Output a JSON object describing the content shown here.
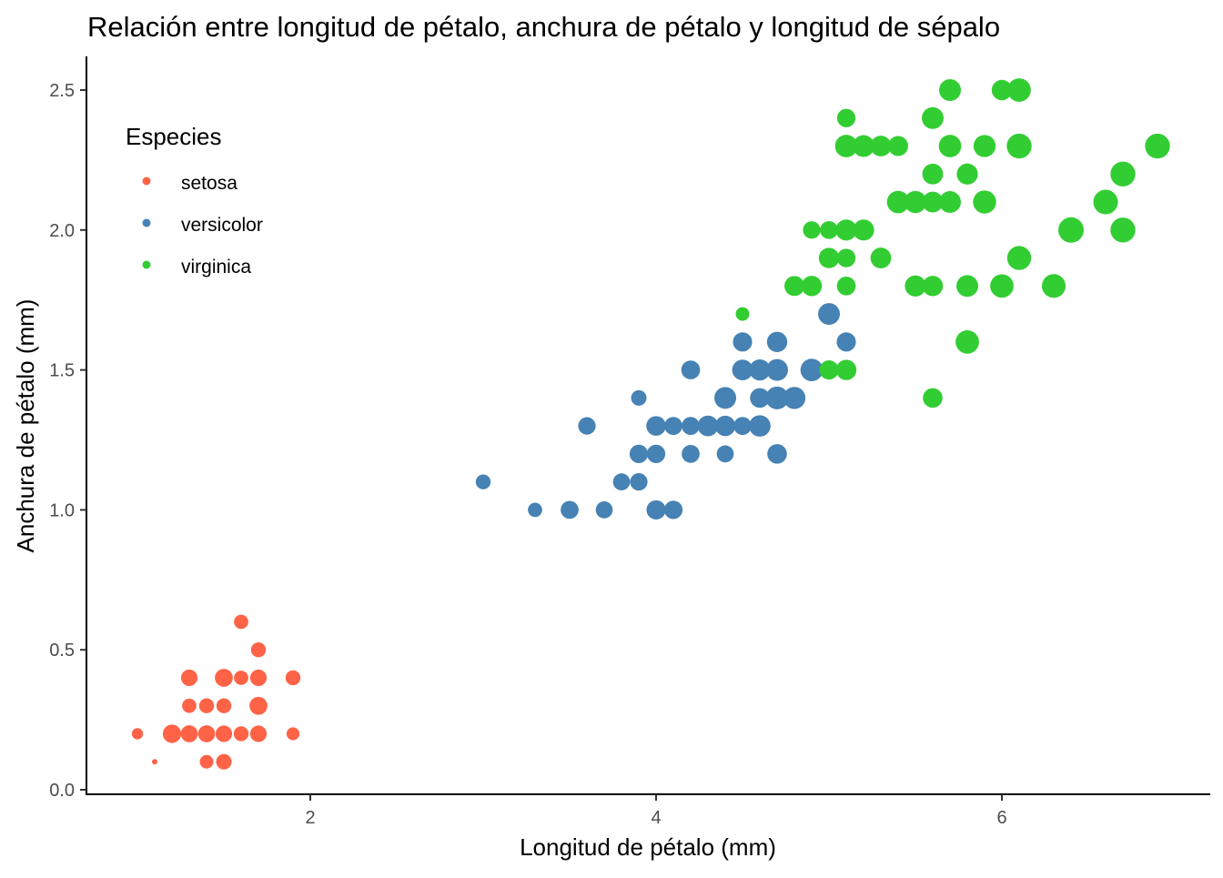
{
  "chart_data": {
    "type": "scatter",
    "title": "Relación entre longitud de pétalo, anchura de pétalo y longitud de sépalo",
    "xlabel": "Longitud de pétalo (mm)",
    "ylabel": "Anchura de pétalo (mm)",
    "xlim": [
      0.705,
      7.195
    ],
    "ylim": [
      0,
      2.62
    ],
    "xticks": [
      2,
      4,
      6
    ],
    "xtick_labels": [
      "2",
      "4",
      "6"
    ],
    "yticks": [
      0,
      0.5,
      1,
      1.5,
      2,
      2.5
    ],
    "ytick_labels": [
      "0.0",
      "0.5",
      "1.0",
      "1.5",
      "2.0",
      "2.5"
    ],
    "grid": false,
    "legend": {
      "title": "Especies",
      "placement": "top-left inside"
    },
    "size_variable_range": [
      4.3,
      7.9
    ],
    "point_fields": [
      "petal_length",
      "petal_width",
      "sepal_length"
    ],
    "series": [
      {
        "name": "setosa",
        "color": "#FF6347",
        "points": [
          [
            1.4,
            0.2,
            5.1
          ],
          [
            1.4,
            0.2,
            4.9
          ],
          [
            1.3,
            0.2,
            4.7
          ],
          [
            1.5,
            0.2,
            4.6
          ],
          [
            1.4,
            0.2,
            5.0
          ],
          [
            1.7,
            0.4,
            5.4
          ],
          [
            1.4,
            0.3,
            4.6
          ],
          [
            1.5,
            0.2,
            5.0
          ],
          [
            1.4,
            0.2,
            4.4
          ],
          [
            1.5,
            0.1,
            4.9
          ],
          [
            1.5,
            0.2,
            5.4
          ],
          [
            1.6,
            0.2,
            4.8
          ],
          [
            1.4,
            0.1,
            4.8
          ],
          [
            1.1,
            0.1,
            4.3
          ],
          [
            1.2,
            0.2,
            5.8
          ],
          [
            1.5,
            0.4,
            5.7
          ],
          [
            1.3,
            0.4,
            5.4
          ],
          [
            1.4,
            0.3,
            5.1
          ],
          [
            1.7,
            0.3,
            5.7
          ],
          [
            1.5,
            0.3,
            5.1
          ],
          [
            1.7,
            0.2,
            5.4
          ],
          [
            1.5,
            0.4,
            5.1
          ],
          [
            1.0,
            0.2,
            4.6
          ],
          [
            1.7,
            0.5,
            5.1
          ],
          [
            1.9,
            0.2,
            4.8
          ],
          [
            1.6,
            0.2,
            5.0
          ],
          [
            1.6,
            0.4,
            5.0
          ],
          [
            1.5,
            0.2,
            5.2
          ],
          [
            1.4,
            0.2,
            5.2
          ],
          [
            1.6,
            0.2,
            4.7
          ],
          [
            1.6,
            0.2,
            4.8
          ],
          [
            1.5,
            0.4,
            5.4
          ],
          [
            1.5,
            0.1,
            5.2
          ],
          [
            1.4,
            0.2,
            5.5
          ],
          [
            1.5,
            0.2,
            4.9
          ],
          [
            1.2,
            0.2,
            5.0
          ],
          [
            1.3,
            0.2,
            5.5
          ],
          [
            1.4,
            0.1,
            4.9
          ],
          [
            1.3,
            0.2,
            4.4
          ],
          [
            1.5,
            0.2,
            5.1
          ],
          [
            1.3,
            0.3,
            5.0
          ],
          [
            1.3,
            0.3,
            4.5
          ],
          [
            1.3,
            0.2,
            4.4
          ],
          [
            1.6,
            0.6,
            5.0
          ],
          [
            1.9,
            0.4,
            5.1
          ],
          [
            1.4,
            0.3,
            4.8
          ],
          [
            1.6,
            0.2,
            5.1
          ],
          [
            1.4,
            0.2,
            4.6
          ],
          [
            1.5,
            0.2,
            5.3
          ],
          [
            1.4,
            0.2,
            5.0
          ]
        ]
      },
      {
        "name": "versicolor",
        "color": "#4682B4",
        "points": [
          [
            4.7,
            1.4,
            7.0
          ],
          [
            4.5,
            1.5,
            6.4
          ],
          [
            4.9,
            1.5,
            6.9
          ],
          [
            4.0,
            1.3,
            5.5
          ],
          [
            4.6,
            1.5,
            6.5
          ],
          [
            4.5,
            1.3,
            5.7
          ],
          [
            4.7,
            1.6,
            6.3
          ],
          [
            3.3,
            1.0,
            4.9
          ],
          [
            4.6,
            1.3,
            6.6
          ],
          [
            3.9,
            1.4,
            5.2
          ],
          [
            3.5,
            1.0,
            5.0
          ],
          [
            4.2,
            1.5,
            5.9
          ],
          [
            4.0,
            1.0,
            6.0
          ],
          [
            4.7,
            1.4,
            6.1
          ],
          [
            3.6,
            1.3,
            5.6
          ],
          [
            4.4,
            1.4,
            6.7
          ],
          [
            4.5,
            1.5,
            5.6
          ],
          [
            4.1,
            1.0,
            5.8
          ],
          [
            4.5,
            1.5,
            6.2
          ],
          [
            3.9,
            1.1,
            5.6
          ],
          [
            4.8,
            1.8,
            5.9
          ],
          [
            4.0,
            1.3,
            6.1
          ],
          [
            4.9,
            1.5,
            6.3
          ],
          [
            4.7,
            1.2,
            6.1
          ],
          [
            4.3,
            1.3,
            6.4
          ],
          [
            4.4,
            1.4,
            6.6
          ],
          [
            4.8,
            1.4,
            6.8
          ],
          [
            5.0,
            1.7,
            6.7
          ],
          [
            4.5,
            1.5,
            6.0
          ],
          [
            3.5,
            1.0,
            5.7
          ],
          [
            3.8,
            1.1,
            5.5
          ],
          [
            3.7,
            1.0,
            5.5
          ],
          [
            3.9,
            1.2,
            5.8
          ],
          [
            5.1,
            1.6,
            6.0
          ],
          [
            4.5,
            1.5,
            5.4
          ],
          [
            4.5,
            1.6,
            6.0
          ],
          [
            4.7,
            1.5,
            6.7
          ],
          [
            4.4,
            1.3,
            6.3
          ],
          [
            4.1,
            1.3,
            5.6
          ],
          [
            4.0,
            1.3,
            5.5
          ],
          [
            4.4,
            1.2,
            5.5
          ],
          [
            4.6,
            1.4,
            6.1
          ],
          [
            4.0,
            1.2,
            5.8
          ],
          [
            3.3,
            1.0,
            5.0
          ],
          [
            4.2,
            1.3,
            5.6
          ],
          [
            4.2,
            1.2,
            5.7
          ],
          [
            4.2,
            1.3,
            5.7
          ],
          [
            4.3,
            1.3,
            6.2
          ],
          [
            3.0,
            1.1,
            5.1
          ],
          [
            4.1,
            1.3,
            5.7
          ]
        ]
      },
      {
        "name": "virginica",
        "color": "#32CD32",
        "points": [
          [
            6.0,
            2.5,
            6.3
          ],
          [
            5.1,
            1.9,
            5.8
          ],
          [
            5.9,
            2.1,
            7.1
          ],
          [
            5.6,
            1.8,
            6.3
          ],
          [
            5.8,
            2.2,
            6.5
          ],
          [
            6.6,
            2.1,
            7.6
          ],
          [
            4.5,
            1.7,
            4.9
          ],
          [
            6.3,
            1.8,
            7.3
          ],
          [
            5.8,
            1.8,
            6.7
          ],
          [
            6.1,
            2.5,
            7.2
          ],
          [
            5.1,
            2.0,
            6.5
          ],
          [
            5.3,
            1.9,
            6.4
          ],
          [
            5.5,
            2.1,
            6.8
          ],
          [
            5.0,
            2.0,
            5.7
          ],
          [
            5.1,
            2.4,
            5.8
          ],
          [
            5.3,
            2.3,
            6.4
          ],
          [
            5.5,
            1.8,
            6.5
          ],
          [
            6.7,
            2.2,
            7.7
          ],
          [
            6.9,
            2.3,
            7.7
          ],
          [
            5.0,
            1.5,
            6.0
          ],
          [
            5.7,
            2.3,
            6.9
          ],
          [
            4.9,
            2.0,
            5.6
          ],
          [
            6.7,
            2.0,
            7.7
          ],
          [
            4.9,
            1.8,
            6.3
          ],
          [
            5.7,
            2.1,
            6.7
          ],
          [
            6.0,
            1.8,
            7.2
          ],
          [
            4.8,
            1.8,
            6.2
          ],
          [
            4.9,
            1.8,
            6.1
          ],
          [
            5.6,
            2.1,
            6.4
          ],
          [
            5.8,
            1.6,
            7.2
          ],
          [
            6.1,
            1.9,
            7.4
          ],
          [
            6.4,
            2.0,
            7.9
          ],
          [
            5.6,
            2.2,
            6.4
          ],
          [
            5.1,
            1.5,
            6.3
          ],
          [
            5.6,
            1.4,
            6.1
          ],
          [
            6.1,
            2.3,
            7.7
          ],
          [
            5.6,
            2.4,
            6.3
          ],
          [
            5.5,
            1.8,
            6.4
          ],
          [
            4.8,
            1.8,
            6.0
          ],
          [
            5.4,
            2.1,
            6.9
          ],
          [
            5.6,
            2.4,
            6.7
          ],
          [
            5.1,
            2.3,
            6.9
          ],
          [
            5.1,
            1.9,
            5.8
          ],
          [
            5.9,
            2.3,
            6.8
          ],
          [
            5.7,
            2.5,
            6.7
          ],
          [
            5.2,
            2.3,
            6.7
          ],
          [
            5.0,
            1.9,
            6.3
          ],
          [
            5.2,
            2.0,
            6.5
          ],
          [
            5.4,
            2.3,
            6.2
          ],
          [
            5.1,
            1.8,
            5.9
          ]
        ]
      }
    ]
  }
}
